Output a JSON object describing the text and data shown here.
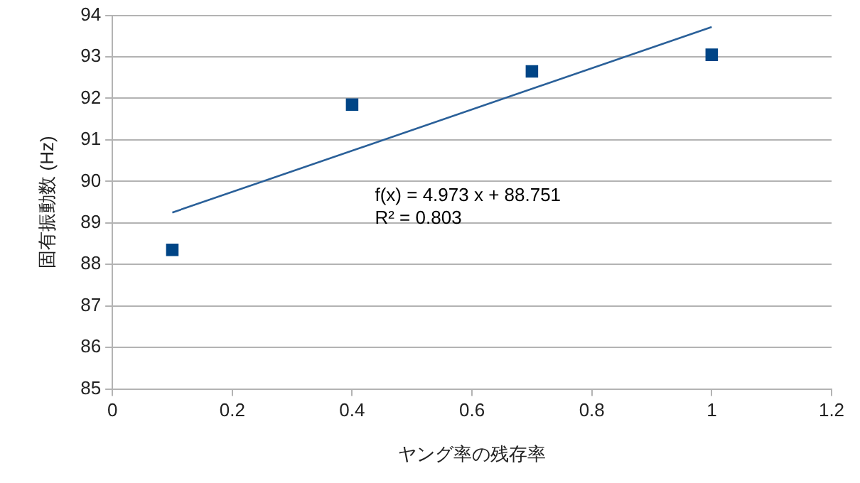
{
  "chart_data": {
    "type": "scatter",
    "xlabel": "ヤング率の残存率",
    "ylabel": "固有振動数 (Hz)",
    "x": [
      0.1,
      0.4,
      0.7,
      1.0
    ],
    "series": [
      {
        "type": "scatter",
        "color": "#004586",
        "marker": "square",
        "values": [
          88.35,
          91.85,
          92.65,
          93.05
        ]
      },
      {
        "type": "line",
        "color": "#2a6099",
        "marker": "none",
        "x": [
          0.1,
          1.0
        ],
        "values": [
          89.25,
          93.72
        ]
      }
    ],
    "annotations": [
      "f(x) = 4.973 x + 88.751",
      "R² = 0.803"
    ],
    "xlim": [
      0,
      1.2
    ],
    "xticks": [
      0,
      0.2,
      0.4,
      0.6,
      0.8,
      1,
      1.2
    ],
    "ylim": [
      85,
      94
    ],
    "yticks": [
      85,
      86,
      87,
      88,
      89,
      90,
      91,
      92,
      93,
      94
    ],
    "grid": "y",
    "legend": false
  }
}
